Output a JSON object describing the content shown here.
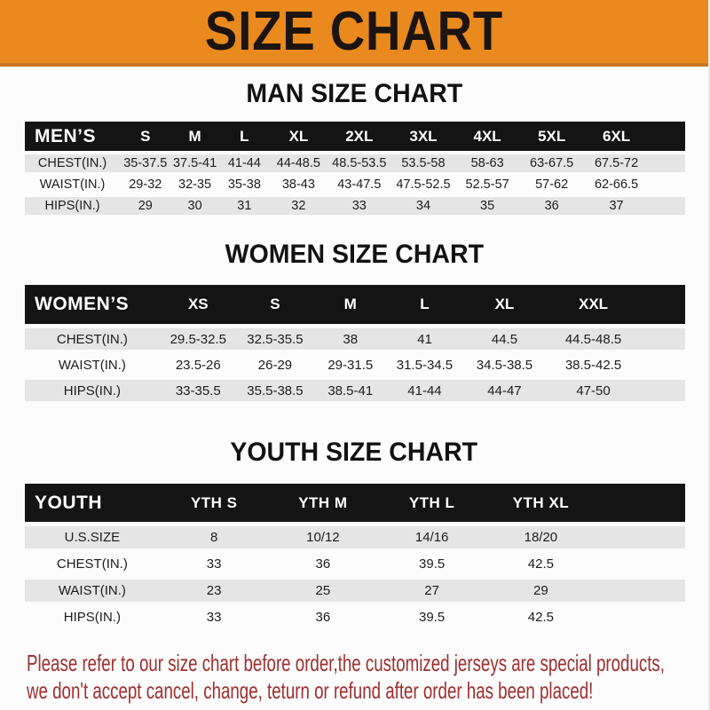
{
  "banner": {
    "title": "SIZE CHART"
  },
  "colors": {
    "banner_bg": "#E9891E",
    "banner_border": "#C8771C",
    "bar_bg": "#141414",
    "row_alt": "#E5E5E5",
    "footer_text": "#A02F2F"
  },
  "sections": [
    {
      "id": "men",
      "heading": "MAN SIZE CHART",
      "label": "MEN’S",
      "columns": [
        "S",
        "M",
        "L",
        "XL",
        "2XL",
        "3XL",
        "4XL",
        "5XL",
        "6XL"
      ],
      "rows": [
        {
          "label": "CHEST(IN.)",
          "values": [
            "35-37.5",
            "37.5-41",
            "41-44",
            "44-48.5",
            "48.5-53.5",
            "53.5-58",
            "58-63",
            "63-67.5",
            "67.5-72"
          ]
        },
        {
          "label": "WAIST(IN.)",
          "values": [
            "29-32",
            "32-35",
            "35-38",
            "38-43",
            "43-47.5",
            "47.5-52.5",
            "52.5-57",
            "57-62",
            "62-66.5"
          ]
        },
        {
          "label": "HIPS(IN.)",
          "values": [
            "29",
            "30",
            "31",
            "32",
            "33",
            "34",
            "35",
            "36",
            "37"
          ]
        }
      ]
    },
    {
      "id": "women",
      "heading": "WOMEN SIZE CHART",
      "label": "WOMEN’S",
      "columns": [
        "XS",
        "S",
        "M",
        "L",
        "XL",
        "XXL"
      ],
      "rows": [
        {
          "label": "CHEST(IN.)",
          "values": [
            "29.5-32.5",
            "32.5-35.5",
            "38",
            "41",
            "44.5",
            "44.5-48.5"
          ]
        },
        {
          "label": "WAIST(IN.)",
          "values": [
            "23.5-26",
            "26-29",
            "29-31.5",
            "31.5-34.5",
            "34.5-38.5",
            "38.5-42.5"
          ]
        },
        {
          "label": "HIPS(IN.)",
          "values": [
            "33-35.5",
            "35.5-38.5",
            "38.5-41",
            "41-44",
            "44-47",
            "47-50"
          ]
        }
      ]
    },
    {
      "id": "youth",
      "heading": "YOUTH SIZE CHART",
      "label": "YOUTH",
      "columns": [
        "YTH S",
        "YTH M",
        "YTH L",
        "YTH XL"
      ],
      "rows": [
        {
          "label": "U.S.SIZE",
          "values": [
            "8",
            "10/12",
            "14/16",
            "18/20"
          ]
        },
        {
          "label": "CHEST(IN.)",
          "values": [
            "33",
            "36",
            "39.5",
            "42.5"
          ]
        },
        {
          "label": "WAIST(IN.)",
          "values": [
            "23",
            "25",
            "27",
            "29"
          ]
        },
        {
          "label": "HIPS(IN.)",
          "values": [
            "33",
            "36",
            "39.5",
            "42.5"
          ]
        }
      ]
    }
  ],
  "footer": {
    "lines": [
      "Please refer to our size chart before order,the customized jerseys are special products,",
      "we don't accept cancel, change, teturn or refund after order has been placed!"
    ]
  }
}
